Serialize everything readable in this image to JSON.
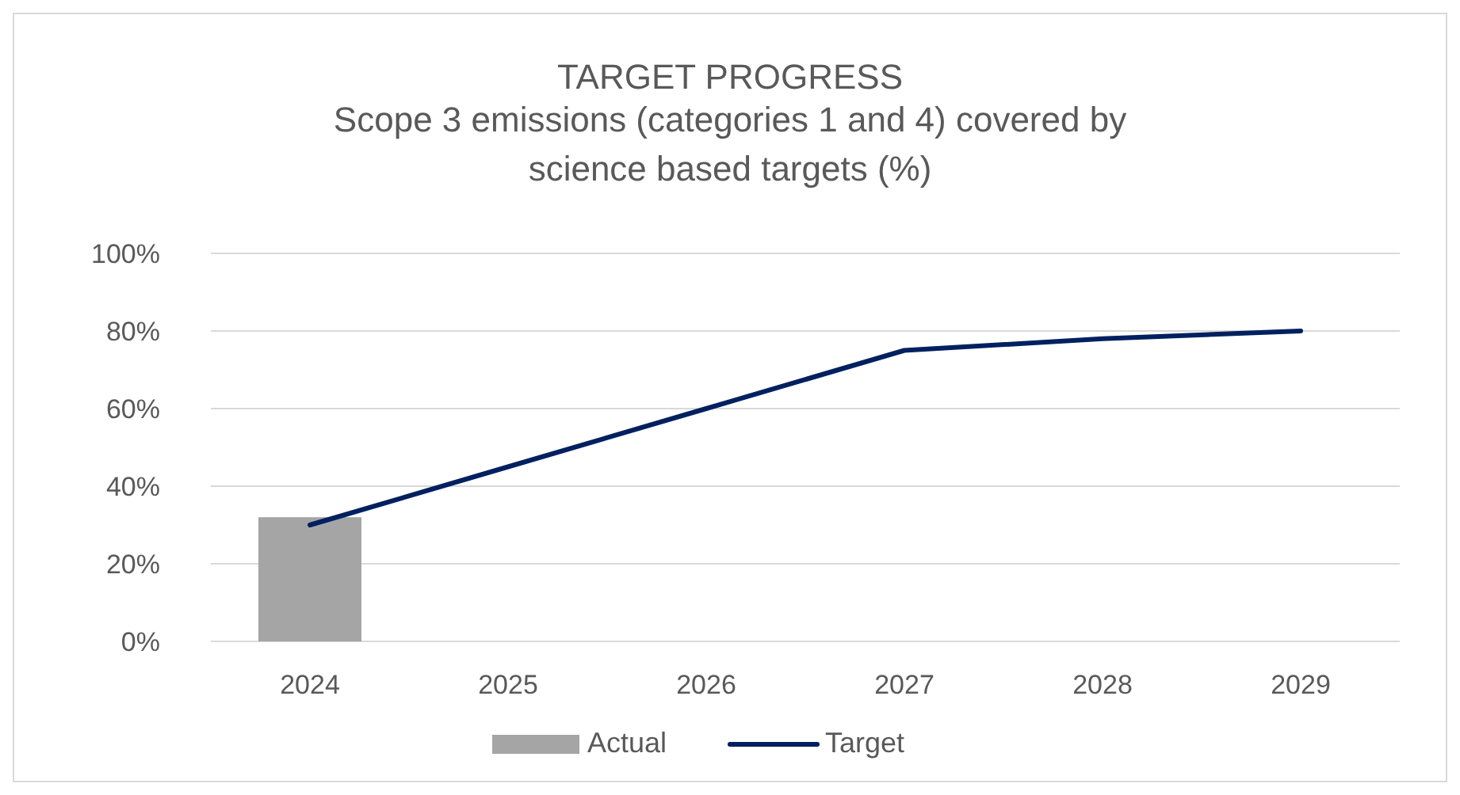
{
  "chart_data": {
    "type": "bar",
    "title": "TARGET PROGRESS",
    "subtitle": "Scope 3 emissions (categories 1 and 4) covered by science based targets (%)",
    "categories": [
      "2024",
      "2025",
      "2026",
      "2027",
      "2028",
      "2029"
    ],
    "series": [
      {
        "name": "Actual",
        "color": "#a5a5a5",
        "values": [
          32,
          null,
          null,
          null,
          null,
          null
        ]
      },
      {
        "name": "Target",
        "type": "line",
        "color": "#002060",
        "values": [
          30,
          45,
          60,
          75,
          78,
          80
        ]
      }
    ],
    "ylim": [
      0,
      100
    ],
    "yticks": [
      {
        "value": 0,
        "label": "0%"
      },
      {
        "value": 20,
        "label": "20%"
      },
      {
        "value": 40,
        "label": "40%"
      },
      {
        "value": 60,
        "label": "60%"
      },
      {
        "value": 80,
        "label": "80%"
      },
      {
        "value": 100,
        "label": "100%"
      }
    ],
    "grid": "y",
    "legend": "bottom",
    "marker": "none",
    "line_style": "solid"
  }
}
